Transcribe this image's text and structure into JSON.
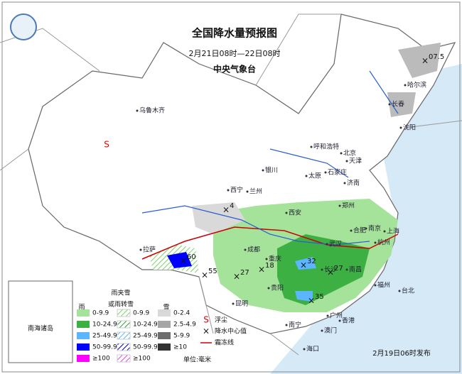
{
  "header": {
    "title": "全国降水量预报图",
    "period": "2月21日08时—22日08时",
    "issuer": "中央气象台"
  },
  "cities": [
    "乌鲁木齐",
    "哈尔滨",
    "长春",
    "沈阳",
    "呼和浩特",
    "北京",
    "天津",
    "石家庄",
    "太原",
    "银川",
    "济南",
    "西宁",
    "兰州",
    "郑州",
    "西安",
    "合肥",
    "南京",
    "上海",
    "杭州",
    "武汉",
    "成都",
    "拉萨",
    "重庆",
    "长沙",
    "南昌",
    "贵阳",
    "福州",
    "台北",
    "昆明",
    "南宁",
    "广州",
    "香港",
    "澳门",
    "海口"
  ],
  "dust_mark": "S",
  "centers": [
    "07.5",
    "4",
    "60",
    "55",
    "27",
    "18",
    "32",
    "27",
    "35"
  ],
  "legend": {
    "rain_title": "雨",
    "sleet_title": [
      "雨夹雪",
      "或雨转雪"
    ],
    "snow_title": "雪",
    "rain": [
      "0-9.9",
      "10-24.9",
      "25-49.9",
      "50-99.9",
      "≥100"
    ],
    "sleet": [
      "0-9.9",
      "10-24.9",
      "25-49.9",
      "50-99.9",
      "≥100"
    ],
    "snow": [
      "0-2.4",
      "2.5-4.9",
      "5-9.9",
      "≥10"
    ],
    "dust_symbol": "S",
    "dust": "浮尘",
    "center_symbol": "×",
    "center": "降水中心值",
    "frost": "霜冻线",
    "unit": "单位:毫米"
  },
  "inset": {
    "label": "南海诸岛"
  },
  "footer": {
    "issued": "2月19日06时发布"
  }
}
